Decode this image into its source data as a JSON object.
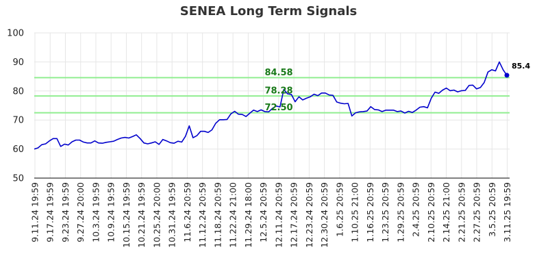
{
  "chart_data": {
    "type": "line",
    "title": "SENEA Long Term Signals",
    "xlabel": "",
    "ylabel": "",
    "ylim": [
      50,
      100
    ],
    "yticks": [
      50,
      60,
      70,
      80,
      90,
      100
    ],
    "grid": true,
    "x_tick_labels": [
      "9.11.24 19:59",
      "9.17.24 19:59",
      "9.23.24 19:59",
      "9.27.24 20:00",
      "10.3.24 19:59",
      "10.9.24 19:59",
      "10.15.24 19:59",
      "10.21.24 19:59",
      "10.25.24 20:00",
      "10.31.24 19:59",
      "11.6.24 20:59",
      "11.12.24 20:59",
      "11.18.24 20:59",
      "11.22.24 21:00",
      "11.29.24 18:00",
      "12.5.24 20:59",
      "12.11.24 20:59",
      "12.17.24 20:59",
      "12.23.24 20:59",
      "12.30.24 20:59",
      "1.6.25 20:59",
      "1.10.25 21:00",
      "1.16.25 20:59",
      "1.23.25 20:59",
      "1.29.25 20:59",
      "2.4.25 20:59",
      "2.10.25 20:59",
      "2.14.25 21:00",
      "2.21.25 20:59",
      "2.27.25 20:59",
      "3.5.25 20:59",
      "3.11.25 19:59"
    ],
    "levels": [
      {
        "value": 84.58,
        "label": "84.58",
        "color": "#90ee90"
      },
      {
        "value": 78.28,
        "label": "78.28",
        "color": "#90ee90"
      },
      {
        "value": 72.5,
        "label": "72.50",
        "color": "#90ee90"
      }
    ],
    "series": [
      {
        "color": "#0000cc",
        "values": [
          60.0,
          60.4,
          61.5,
          61.8,
          62.8,
          63.6,
          63.6,
          60.9,
          61.7,
          61.4,
          62.5,
          63.1,
          63.1,
          62.4,
          62.1,
          62.1,
          62.8,
          62.1,
          62.0,
          62.3,
          62.5,
          62.7,
          63.3,
          63.8,
          64.0,
          63.8,
          64.3,
          64.9,
          63.6,
          62.1,
          61.8,
          62.1,
          62.5,
          61.6,
          63.3,
          62.8,
          62.2,
          62.0,
          62.7,
          62.4,
          64.4,
          68.0,
          63.9,
          64.6,
          66.1,
          66.1,
          65.7,
          66.6,
          68.9,
          70.1,
          70.1,
          70.2,
          72.1,
          73.0,
          72.0,
          71.9,
          71.2,
          72.3,
          73.4,
          72.9,
          73.5,
          72.9,
          72.8,
          74.0,
          74.8,
          74.5,
          80.5,
          79.0,
          78.8,
          76.3,
          78.0,
          76.9,
          77.5,
          78.0,
          78.9,
          78.4,
          79.3,
          79.3,
          78.6,
          78.5,
          76.2,
          75.8,
          75.6,
          75.7,
          71.4,
          72.5,
          72.8,
          72.9,
          73.1,
          74.6,
          73.6,
          73.5,
          72.9,
          73.4,
          73.4,
          73.4,
          72.9,
          73.1,
          72.4,
          73.0,
          72.6,
          73.4,
          74.4,
          74.6,
          74.2,
          77.5,
          79.6,
          79.2,
          80.3,
          81.0,
          80.1,
          80.3,
          79.7,
          80.1,
          80.2,
          81.9,
          82.0,
          80.7,
          81.2,
          82.9,
          86.5,
          87.3,
          86.9,
          90.0,
          87.3,
          85.4
        ]
      }
    ],
    "last_value_label": "85.4"
  }
}
